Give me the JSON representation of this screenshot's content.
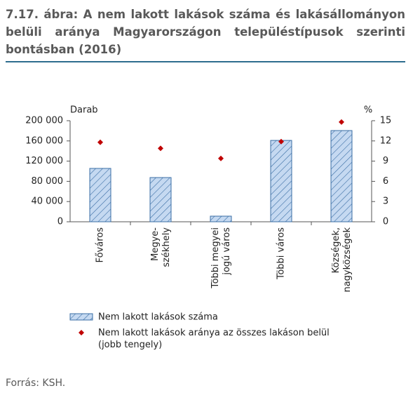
{
  "header": {
    "title": "7.17. ábra: A nem lakott lakások száma és lakásállományon belüli aránya Magyarországon településtípusok szerinti bontásban (2016)"
  },
  "chart_data": {
    "type": "bar",
    "y_label": "Darab",
    "y2_label": "%",
    "categories": [
      "Főváros",
      "Megye-\nszékhely",
      "Többi megyei\njogú város",
      "Többi város",
      "Községek,\nnagyközségek"
    ],
    "series": [
      {
        "name": "Nem lakott lakások száma",
        "color": "#c5d9f1",
        "values": [
          105600,
          87500,
          11100,
          161000,
          180500
        ]
      },
      {
        "name": "Nem lakott lakások aránya az összes lakáson belül\n(jobb tengely)",
        "color": "#c00000",
        "axis": "y2",
        "values": [
          11.8,
          10.9,
          9.4,
          11.9,
          14.8
        ]
      }
    ],
    "ylim": [
      0,
      200000
    ],
    "yticks": [
      0,
      {
        "value": 40000,
        "label": "40 000"
      },
      {
        "value": 80000,
        "label": "80 000"
      },
      {
        "value": 120000,
        "label": "120 000"
      },
      {
        "value": 160000,
        "label": "160 000"
      },
      {
        "value": 200000,
        "label": "200 000"
      }
    ],
    "y2lim": [
      0,
      15
    ],
    "y2ticks": [
      0,
      3,
      6,
      9,
      12,
      15
    ],
    "grid": false,
    "legend": "bottom"
  },
  "footer": {
    "source": "Forrás: KSH."
  }
}
